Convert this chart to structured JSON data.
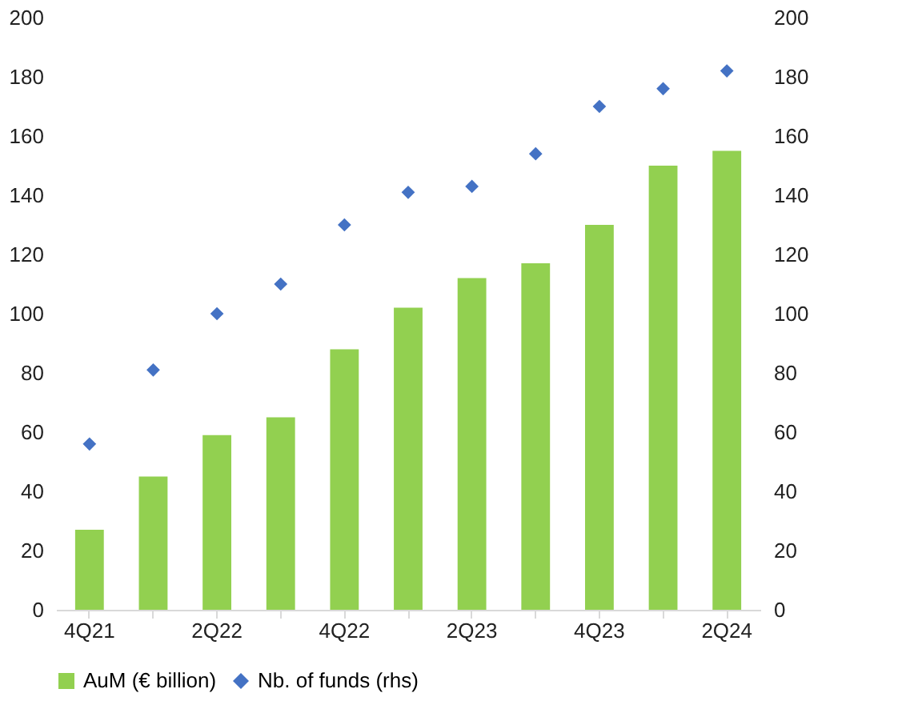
{
  "chart_data": {
    "type": "bar",
    "categories": [
      "4Q21",
      null,
      "2Q22",
      null,
      "4Q22",
      null,
      "2Q23",
      null,
      "4Q23",
      null,
      "2Q24"
    ],
    "series": [
      {
        "name": "AuM (€ billion)",
        "color": "#92d050",
        "values": [
          27,
          45,
          59,
          65,
          88,
          102,
          112,
          117,
          130,
          150,
          155
        ]
      },
      {
        "name": "Nb. of funds (rhs)",
        "color": "#4472c4",
        "type": "scatter",
        "marker": "diamond",
        "axis": "y2",
        "values": [
          56,
          81,
          100,
          110,
          130,
          141,
          143,
          154,
          170,
          176,
          182
        ]
      }
    ],
    "ylim": [
      0,
      200
    ],
    "yticks": [
      0,
      20,
      40,
      60,
      80,
      100,
      120,
      140,
      160,
      180,
      200
    ],
    "y2lim": [
      0,
      200
    ],
    "y2ticks": [
      0,
      20,
      40,
      60,
      80,
      100,
      120,
      140,
      160,
      180,
      200
    ],
    "grid": false,
    "legend": "bottom"
  }
}
